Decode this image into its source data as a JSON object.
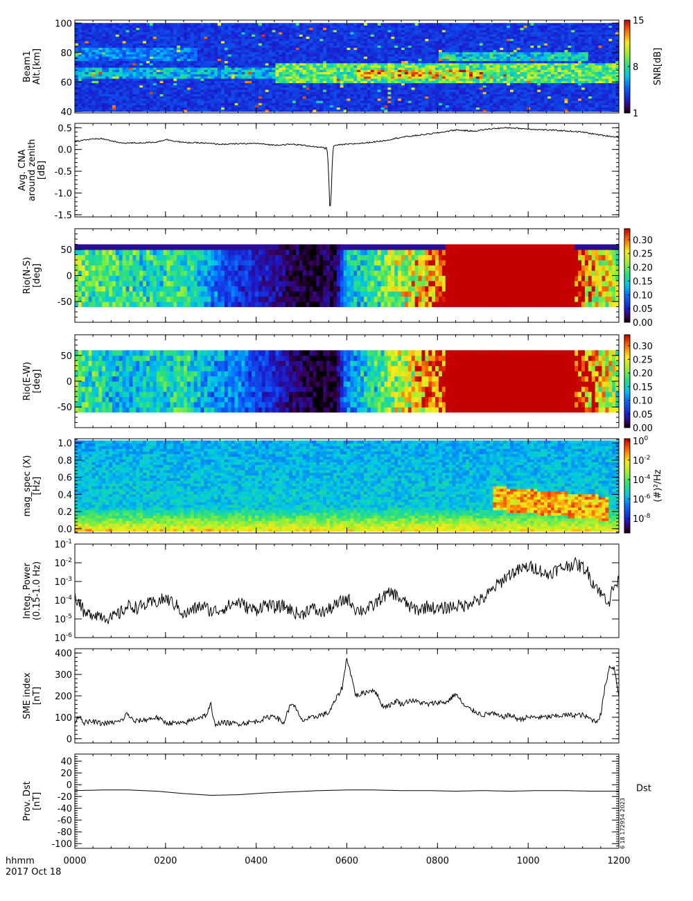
{
  "chart_data": [
    {
      "type": "heatmap",
      "id": "p1",
      "ylabel": [
        "Beam1",
        "Alt.[km]"
      ],
      "ylim": [
        39,
        102
      ],
      "yticks": [
        40,
        60,
        80,
        100
      ],
      "ytick_labels": [
        "40",
        "60",
        "80",
        "100"
      ],
      "colorbar": {
        "label": "SNR[dB]",
        "range": [
          1,
          15
        ],
        "ticks": [
          1,
          8,
          15
        ],
        "tick_labels": [
          "1",
          "8",
          "15"
        ]
      },
      "bands": [
        {
          "y": [
            62,
            70
          ],
          "x": [
            0,
            1200
          ],
          "level": 0.45
        },
        {
          "y": [
            75,
            84
          ],
          "x": [
            0,
            270
          ],
          "level": 0.35
        },
        {
          "y": [
            60,
            73
          ],
          "x": [
            440,
            1200
          ],
          "level": 0.65
        },
        {
          "y": [
            62,
            68
          ],
          "x": [
            620,
            900
          ],
          "level": 0.9
        },
        {
          "y": [
            74,
            80
          ],
          "x": [
            800,
            1130
          ],
          "level": 0.5
        }
      ]
    },
    {
      "type": "line",
      "id": "p2",
      "ylabel": [
        "Avg. CNA",
        "around zenith",
        "[dB]"
      ],
      "ylim": [
        -1.55,
        0.6
      ],
      "yticks": [
        -1.5,
        -1.0,
        -0.5,
        0.0,
        0.5
      ],
      "ytick_labels": [
        "-1.5",
        "-1.0",
        "-0.5",
        "0.0",
        "0.5"
      ],
      "x": [
        0,
        20,
        60,
        100,
        140,
        180,
        200,
        240,
        280,
        320,
        360,
        400,
        440,
        480,
        520,
        540,
        548,
        552,
        554,
        556,
        558,
        560,
        563,
        566,
        568,
        570,
        575,
        580,
        600,
        640,
        680,
        720,
        760,
        800,
        840,
        880,
        920,
        960,
        1000,
        1040,
        1080,
        1120,
        1160,
        1200
      ],
      "values": [
        0.18,
        0.22,
        0.25,
        0.15,
        0.15,
        0.17,
        0.23,
        0.16,
        0.15,
        0.12,
        0.13,
        0.14,
        0.1,
        0.12,
        0.08,
        0.04,
        0.06,
        0.0,
        0.07,
        0.0,
        -0.15,
        -0.6,
        -1.5,
        -0.9,
        -0.25,
        0.05,
        0.1,
        0.1,
        0.12,
        0.15,
        0.2,
        0.28,
        0.33,
        0.38,
        0.45,
        0.42,
        0.48,
        0.5,
        0.47,
        0.45,
        0.43,
        0.4,
        0.33,
        0.28
      ]
    },
    {
      "type": "heatmap",
      "id": "p3",
      "ylabel": [
        "Rio(N-S)",
        "[deg]"
      ],
      "ylim": [
        -90,
        90
      ],
      "yticks": [
        -50,
        0,
        50
      ],
      "ytick_labels": [
        "-50",
        "0",
        "50"
      ],
      "colorbar": {
        "range": [
          0,
          0.34
        ],
        "ticks": [
          0.0,
          0.05,
          0.1,
          0.15,
          0.2,
          0.25,
          0.3
        ],
        "tick_labels": [
          "0.00",
          "0.05",
          "0.10",
          "0.15",
          "0.20",
          "0.25",
          "0.30"
        ]
      },
      "profile_x": [
        0,
        60,
        120,
        180,
        240,
        300,
        360,
        420,
        480,
        540,
        560,
        570,
        580,
        600,
        660,
        720,
        780,
        820,
        900,
        1000,
        1100,
        1140,
        1200
      ],
      "profile_level": [
        0.58,
        0.55,
        0.5,
        0.48,
        0.52,
        0.32,
        0.2,
        0.14,
        0.05,
        0.03,
        0.08,
        0.01,
        0.1,
        0.38,
        0.5,
        0.65,
        0.82,
        0.98,
        1.0,
        1.0,
        1.0,
        0.82,
        0.62
      ],
      "rows_y": [
        -60,
        60
      ]
    },
    {
      "type": "heatmap",
      "id": "p4",
      "ylabel": [
        "Rio(E-W)",
        "[deg]"
      ],
      "ylim": [
        -90,
        90
      ],
      "yticks": [
        -50,
        0,
        50
      ],
      "ytick_labels": [
        "-50",
        "0",
        "50"
      ],
      "colorbar": {
        "range": [
          0,
          0.34
        ],
        "ticks": [
          0.0,
          0.05,
          0.1,
          0.15,
          0.2,
          0.25,
          0.3
        ],
        "tick_labels": [
          "0.00",
          "0.05",
          "0.10",
          "0.15",
          "0.20",
          "0.25",
          "0.30"
        ]
      },
      "profile_x": [
        0,
        60,
        120,
        180,
        240,
        300,
        360,
        420,
        480,
        540,
        560,
        570,
        580,
        600,
        660,
        720,
        780,
        820,
        900,
        1000,
        1100,
        1140,
        1200
      ],
      "profile_level": [
        0.55,
        0.45,
        0.38,
        0.45,
        0.5,
        0.35,
        0.3,
        0.2,
        0.08,
        0.02,
        0.05,
        0.0,
        0.08,
        0.3,
        0.5,
        0.68,
        0.85,
        0.98,
        1.0,
        1.0,
        1.0,
        0.85,
        0.6
      ],
      "rows_y": [
        -60,
        60
      ]
    },
    {
      "type": "heatmap",
      "id": "p5",
      "ylabel": [
        "mag_spec (X)",
        "[Hz]"
      ],
      "ylim": [
        -0.05,
        1.05
      ],
      "yticks": [
        0.0,
        0.2,
        0.4,
        0.6,
        0.8,
        1.0
      ],
      "ytick_labels": [
        "0.0",
        "0.2",
        "0.4",
        "0.6",
        "0.8",
        "1.0"
      ],
      "colorbar": {
        "label": "(#)²/Hz",
        "range": [
          -9.5,
          0.2
        ],
        "ticks": [
          0,
          -2,
          -4,
          -6,
          -8
        ],
        "tick_base": "10",
        "tick_exponents": [
          "0",
          "-2",
          "-4",
          "-6",
          "-8"
        ]
      },
      "features": [
        {
          "x": [
            920,
            1180
          ],
          "y": [
            0.22,
            0.5
          ],
          "level": 0.85
        },
        {
          "x": [
            0,
            1200
          ],
          "y": [
            -0.02,
            0.02
          ],
          "level": 0.8
        }
      ]
    },
    {
      "type": "line",
      "id": "p6",
      "ylabel": [
        "Integ. Power",
        "(0.15-1.0 Hz)"
      ],
      "yscale": "log",
      "ylim": [
        1e-06,
        0.1
      ],
      "yticks": [
        -6,
        -5,
        -4,
        -3,
        -2,
        -1
      ],
      "tick_base": "10",
      "tick_exponents": [
        "-6",
        "-5",
        "-4",
        "-3",
        "-2",
        "-1"
      ],
      "x": [
        0,
        20,
        40,
        60,
        80,
        100,
        120,
        140,
        160,
        180,
        200,
        220,
        240,
        260,
        280,
        300,
        320,
        340,
        360,
        380,
        400,
        420,
        440,
        460,
        480,
        500,
        520,
        540,
        560,
        580,
        600,
        620,
        640,
        660,
        680,
        700,
        720,
        740,
        760,
        780,
        800,
        820,
        840,
        860,
        880,
        900,
        920,
        940,
        960,
        980,
        1000,
        1020,
        1040,
        1060,
        1080,
        1100,
        1120,
        1140,
        1160,
        1180,
        1200
      ],
      "values": [
        0.00015,
        1.5e-05,
        2e-05,
        1.5e-05,
        1e-05,
        2e-05,
        5e-05,
        4e-05,
        6e-05,
        8e-05,
        0.00012,
        6e-05,
        1.5e-05,
        3e-05,
        5e-05,
        2.5e-05,
        3e-05,
        5e-05,
        8e-05,
        4e-05,
        3e-05,
        6e-05,
        4e-05,
        5e-05,
        2.5e-05,
        1.5e-05,
        4e-05,
        2e-05,
        3e-05,
        6e-05,
        0.00012,
        3e-05,
        3e-05,
        5e-05,
        0.00015,
        0.00025,
        0.0001,
        4e-05,
        3e-05,
        5e-05,
        3e-05,
        4e-05,
        5e-05,
        5e-05,
        0.0001,
        0.0001,
        0.0003,
        0.0009,
        0.0025,
        0.004,
        0.006,
        0.005,
        0.002,
        0.004,
        0.006,
        0.009,
        0.006,
        0.001,
        0.0002,
        8e-05,
        0.001
      ],
      "noise": 0.35
    },
    {
      "type": "line",
      "id": "p7",
      "ylabel": [
        "SME index",
        "[nT]"
      ],
      "ylim": [
        -20,
        420
      ],
      "yticks": [
        0,
        100,
        200,
        300,
        400
      ],
      "ytick_labels": [
        "0",
        "100",
        "200",
        "300",
        "400"
      ],
      "x": [
        0,
        10,
        20,
        40,
        60,
        80,
        100,
        110,
        115,
        130,
        160,
        180,
        200,
        240,
        260,
        290,
        300,
        305,
        310,
        330,
        360,
        400,
        440,
        460,
        470,
        480,
        500,
        520,
        540,
        560,
        580,
        590,
        600,
        620,
        660,
        680,
        700,
        710,
        720,
        740,
        760,
        780,
        800,
        820,
        840,
        860,
        880,
        900,
        920,
        940,
        960,
        980,
        1000,
        1040,
        1080,
        1120,
        1140,
        1150,
        1160,
        1170,
        1180,
        1190,
        1200
      ],
      "values": [
        80,
        110,
        75,
        80,
        70,
        75,
        80,
        100,
        120,
        80,
        90,
        100,
        75,
        70,
        90,
        110,
        160,
        90,
        70,
        75,
        70,
        80,
        110,
        70,
        130,
        170,
        85,
        95,
        110,
        120,
        200,
        240,
        380,
        200,
        230,
        150,
        160,
        180,
        160,
        180,
        170,
        160,
        170,
        170,
        210,
        150,
        130,
        110,
        120,
        100,
        110,
        90,
        100,
        100,
        110,
        110,
        90,
        80,
        110,
        250,
        340,
        330,
        200
      ],
      "noise": 12
    },
    {
      "type": "line",
      "id": "p8",
      "ylabel": [
        "Prov. Dst",
        "[nT]"
      ],
      "ylim": [
        -108,
        52
      ],
      "yticks": [
        -100,
        -80,
        -60,
        -40,
        -20,
        0,
        20,
        40
      ],
      "ytick_labels": [
        "-100",
        "-80",
        "-60",
        "-40",
        "-20",
        "0",
        "20",
        "40"
      ],
      "series_label": "Dst",
      "x": [
        0,
        60,
        120,
        180,
        240,
        300,
        360,
        420,
        480,
        540,
        600,
        660,
        720,
        780,
        840,
        900,
        960,
        1020,
        1080,
        1140,
        1200
      ],
      "values": [
        -10,
        -9,
        -9,
        -11,
        -15,
        -18,
        -17,
        -14,
        -12,
        -10,
        -9,
        -9,
        -10,
        -10,
        -11,
        -10,
        -11,
        -10,
        -10,
        -11,
        -11
      ]
    }
  ],
  "x_axis": {
    "range": [
      0,
      1200
    ],
    "ticks": [
      0,
      200,
      400,
      600,
      800,
      1000,
      1200
    ],
    "tick_labels": [
      "0000",
      "0200",
      "0400",
      "0600",
      "0800",
      "1000",
      "1200"
    ],
    "label": "hhmm",
    "date": "2017 Oct 18"
  },
  "footer_stamp": "6 18 172954 2023",
  "colors": {
    "line": "#000000",
    "background": "#ffffff"
  }
}
